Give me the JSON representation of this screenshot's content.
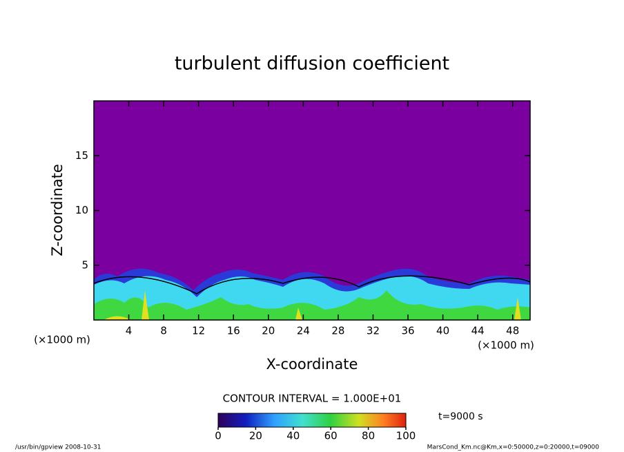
{
  "chart_data": {
    "type": "contour",
    "title": "turbulent diffusion coefficient",
    "xlabel": "X-coordinate",
    "ylabel": "Z-coordinate",
    "x_unit": "(×1000 m)",
    "xlim": [
      0,
      50
    ],
    "xticks": [
      4,
      8,
      12,
      16,
      20,
      24,
      28,
      32,
      36,
      40,
      44,
      48
    ],
    "ylim": [
      0,
      20
    ],
    "yticks": [
      5,
      10,
      15
    ],
    "contour_interval": "CONTOUR INTERVAL = 1.000E+01",
    "colorbar_lim": [
      0,
      100
    ],
    "colorbar_ticks": [
      0,
      20,
      40,
      60,
      80,
      100
    ],
    "time_label": "t=9000 s",
    "footer_left": "/usr/bin/gpview   2008-10-31",
    "footer_right": "MarsCond_Km.nc@Km,x=0:50000,z=0:20000,t=09000"
  }
}
